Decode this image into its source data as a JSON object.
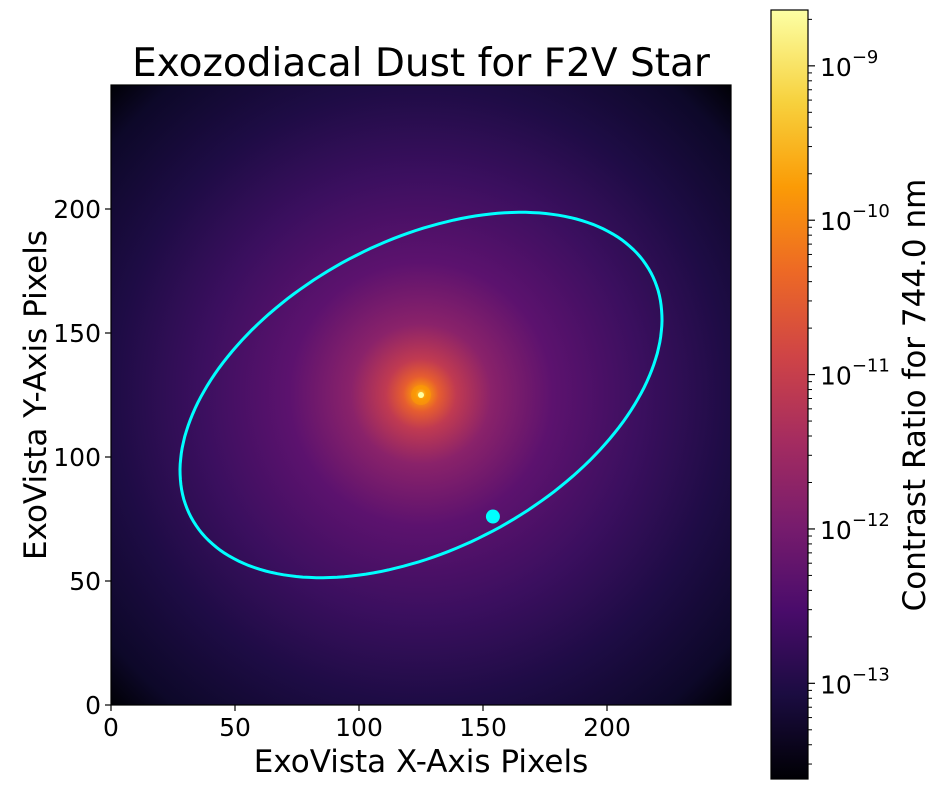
{
  "chart_data": {
    "type": "heatmap",
    "title": "Exozodiacal Dust for F2V Star",
    "xlabel": "ExoVista X-Axis Pixels",
    "ylabel": "ExoVista Y-Axis Pixels",
    "xlim": [
      0,
      250
    ],
    "ylim": [
      0,
      250
    ],
    "xticks": [
      0,
      50,
      100,
      150,
      200
    ],
    "yticks": [
      0,
      50,
      100,
      150,
      200
    ],
    "grid": false,
    "colormap": "inferno",
    "colors": [
      "#000004",
      "#1b0c41",
      "#4a0c6b",
      "#781c6d",
      "#a52c60",
      "#cf4446",
      "#ed6925",
      "#fb9b06",
      "#f7d13d",
      "#fcffa4"
    ],
    "star": {
      "x": 125,
      "y": 125,
      "color": "#fcffa4"
    },
    "colorbar": {
      "label": "Contrast Ratio for 744.0 nm",
      "scale": "log",
      "range": [
        2.4e-14,
        2.3e-09
      ],
      "major_ticks": [
        {
          "value": 1e-13,
          "base": "10",
          "exponent": "−13"
        },
        {
          "value": 1e-12,
          "base": "10",
          "exponent": "−12"
        },
        {
          "value": 1e-11,
          "base": "10",
          "exponent": "−11"
        },
        {
          "value": 1e-10,
          "base": "10",
          "exponent": "−10"
        },
        {
          "value": 1e-09,
          "base": "10",
          "exponent": "−9"
        }
      ]
    },
    "orbit": {
      "color": "#00ffff",
      "center": [
        125,
        125
      ],
      "semi_major": 105,
      "semi_minor": 62,
      "angle_deg": 28,
      "planet": {
        "x": 154,
        "y": 76
      }
    }
  }
}
